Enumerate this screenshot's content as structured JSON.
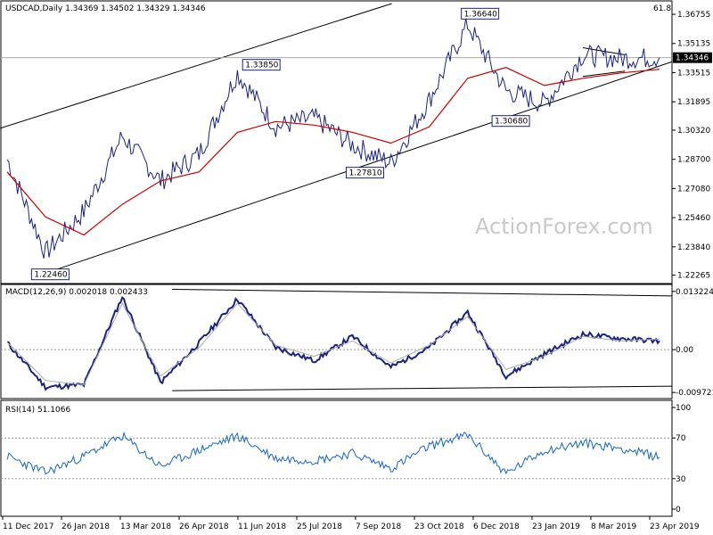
{
  "chart_data": {
    "type": "line",
    "symbol": "USDCAD",
    "timeframe": "Daily",
    "ohlc": {
      "open": "1.34369",
      "high": "1.34502",
      "low": "1.34329",
      "close": "1.34346"
    },
    "header_label": "USDCAD,Daily  1.34369 1.34502 1.34329 1.34346",
    "corner_label": "61.8",
    "watermark": "ActionForex.com",
    "x_labels": [
      "11 Dec 2017",
      "26 Jan 2018",
      "13 Mar 2018",
      "26 Apr 2018",
      "11 Jun 2018",
      "25 Jul 2018",
      "7 Sep 2018",
      "23 Oct 2018",
      "6 Dec 2018",
      "23 Jan 2019",
      "8 Mar 2019",
      "23 Apr 2019"
    ],
    "price_panel": {
      "ylim": [
        1.2195,
        1.3735
      ],
      "ticks": [
        "1.36755",
        "1.35135",
        "1.33515",
        "1.31895",
        "1.30320",
        "1.28700",
        "1.27080",
        "1.25460",
        "1.23840",
        "1.22265"
      ],
      "current_price": "1.34346",
      "annotations": [
        {
          "label": "1.22460",
          "x": "Jan 2018",
          "value": 1.2246
        },
        {
          "label": "1.33850",
          "x": "Jun 2018",
          "value": 1.3385
        },
        {
          "label": "1.27810",
          "x": "Oct 2018",
          "value": 1.2781
        },
        {
          "label": "1.36640",
          "x": "Dec 2018",
          "value": 1.3664
        },
        {
          "label": "1.30680",
          "x": "Jan 2019",
          "value": 1.3068
        }
      ],
      "series": [
        {
          "name": "USDCAD",
          "x": [
            "Dec 2017",
            "Jan 2018",
            "Feb 2018",
            "Mar 2018",
            "Apr 2018",
            "May 2018",
            "Jun 2018",
            "Jul 2018",
            "Aug 2018",
            "Sep 2018",
            "Oct 2018",
            "Nov 2018",
            "Dec 2018",
            "Jan 2019",
            "Feb 2019",
            "Mar 2019",
            "Apr 2019",
            "May 2019"
          ],
          "values": [
            1.287,
            1.235,
            1.258,
            1.3,
            1.275,
            1.29,
            1.335,
            1.305,
            1.31,
            1.295,
            1.285,
            1.32,
            1.362,
            1.325,
            1.318,
            1.345,
            1.343,
            1.3435
          ]
        },
        {
          "name": "SMA",
          "values": [
            1.28,
            1.255,
            1.245,
            1.262,
            1.275,
            1.28,
            1.302,
            1.308,
            1.306,
            1.302,
            1.296,
            1.305,
            1.332,
            1.338,
            1.328,
            1.332,
            1.335,
            1.337
          ]
        }
      ]
    },
    "macd_panel": {
      "title": "MACD(12,26,9) 0.002018 0.002433",
      "ylim": [
        -0.0107,
        0.0142
      ],
      "ticks": [
        "0.013224",
        "0.00",
        "-0.009721"
      ],
      "series": [
        {
          "name": "MACD",
          "values": [
            0.0016,
            -0.0085,
            -0.008,
            0.012,
            -0.0075,
            0.0015,
            0.0115,
            0.0005,
            -0.0025,
            0.003,
            -0.004,
            0.0005,
            0.0085,
            -0.006,
            -0.001,
            0.0035,
            0.0025,
            0.002
          ]
        },
        {
          "name": "Signal",
          "values": [
            0.0017,
            -0.007,
            -0.008,
            0.0105,
            -0.006,
            0.0005,
            0.0105,
            0.001,
            -0.0015,
            0.002,
            -0.003,
            0.001,
            0.0075,
            -0.0045,
            -0.0015,
            0.003,
            0.002,
            0.0024
          ]
        }
      ]
    },
    "rsi_panel": {
      "title": "RSI(14) 51.1066",
      "ylim": [
        0,
        100
      ],
      "ticks": [
        "100",
        "70",
        "30",
        "0"
      ],
      "series": [
        {
          "name": "RSI",
          "values": [
            52,
            36,
            52,
            72,
            42,
            58,
            72,
            50,
            48,
            55,
            40,
            62,
            73,
            35,
            58,
            65,
            60,
            51.1066
          ]
        }
      ]
    }
  }
}
